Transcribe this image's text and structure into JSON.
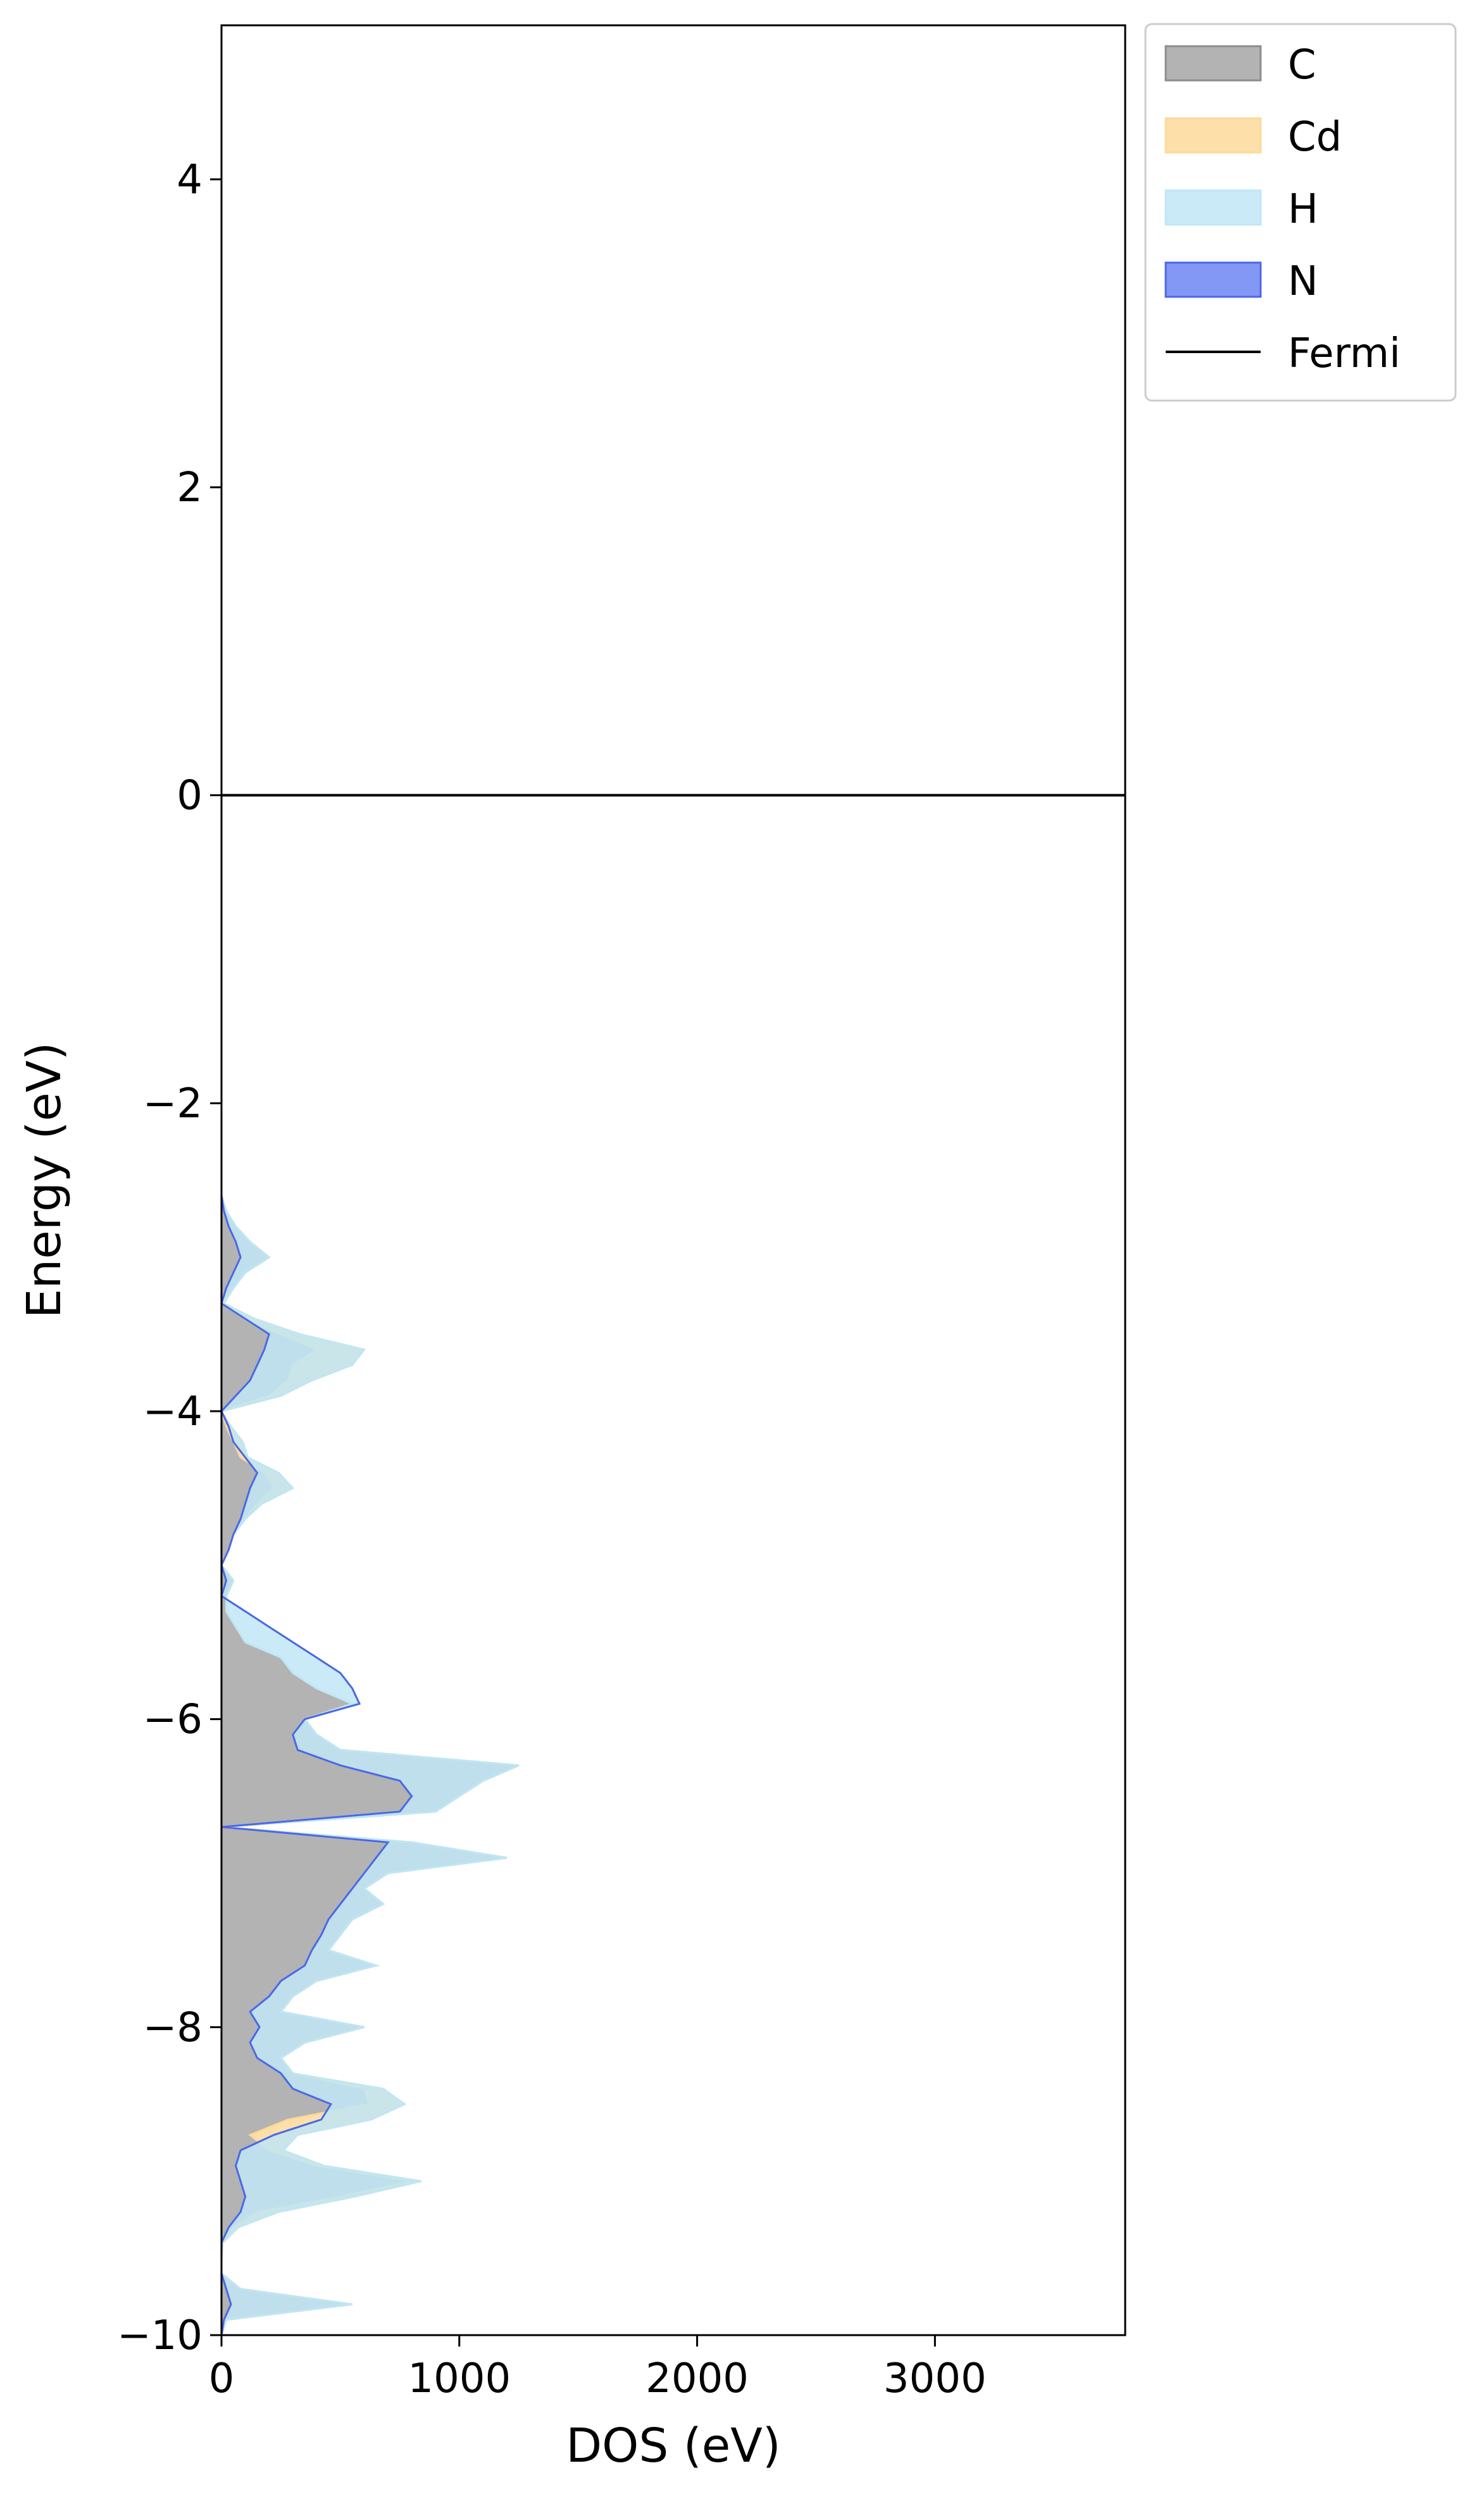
{
  "chart_data": {
    "type": "area",
    "orientation": "horizontal",
    "xlabel": "DOS (eV)",
    "ylabel": "Energy (eV)",
    "xlim": [
      0,
      3800
    ],
    "ylim": [
      -10,
      5
    ],
    "xticks": [
      0,
      1000,
      2000,
      3000
    ],
    "yticks": [
      -10,
      -8,
      -6,
      -4,
      -2,
      0,
      2,
      4
    ],
    "xtick_labels": [
      "0",
      "1000",
      "2000",
      "3000"
    ],
    "ytick_labels": [
      "−10",
      "−8",
      "−6",
      "−4",
      "−2",
      "0",
      "2",
      "4"
    ],
    "stacked": true,
    "fermi_level": 0,
    "legend_position": "outside-top-right",
    "energy": [
      -10.0,
      -9.9,
      -9.8,
      -9.7,
      -9.6,
      -9.5,
      -9.4,
      -9.3,
      -9.2,
      -9.1,
      -9.0,
      -8.9,
      -8.8,
      -8.7,
      -8.6,
      -8.5,
      -8.4,
      -8.3,
      -8.2,
      -8.1,
      -8.0,
      -7.9,
      -7.8,
      -7.7,
      -7.6,
      -7.5,
      -7.4,
      -7.3,
      -7.2,
      -7.1,
      -7.0,
      -6.9,
      -6.8,
      -6.7,
      -6.6,
      -6.5,
      -6.4,
      -6.3,
      -6.2,
      -6.1,
      -6.0,
      -5.9,
      -5.8,
      -5.7,
      -5.6,
      -5.5,
      -5.4,
      -5.3,
      -5.2,
      -5.1,
      -5.0,
      -4.9,
      -4.8,
      -4.7,
      -4.6,
      -4.5,
      -4.4,
      -4.3,
      -4.2,
      -4.1,
      -4.0,
      -3.9,
      -3.8,
      -3.7,
      -3.6,
      -3.5,
      -3.4,
      -3.3,
      -3.2,
      -3.1,
      -3.0,
      -2.9,
      -2.8,
      -2.7,
      -2.6,
      -2.5,
      -2.4,
      -2.3,
      -2.2,
      -2.1,
      -2.0,
      -1.9,
      -1.8,
      -1.7,
      -1.6,
      -1.5,
      -1.4,
      -1.3,
      -1.2,
      -1.1,
      -1.0,
      -0.9,
      -0.8,
      -0.7,
      -0.6,
      -0.5,
      -0.4,
      -0.3,
      -0.2,
      -0.1,
      0.0,
      0.1,
      0.2,
      0.3,
      0.4,
      0.5,
      0.6,
      0.7,
      0.8,
      0.9,
      1.0,
      1.1,
      1.2,
      1.3,
      1.4,
      1.5,
      1.6,
      1.7,
      1.8,
      1.9,
      2.0,
      2.1,
      2.2,
      2.3,
      2.4,
      2.5,
      2.6,
      2.7,
      2.8,
      2.9,
      3.0,
      3.1,
      3.2,
      3.3,
      3.4,
      3.5,
      3.6,
      3.7,
      3.8,
      3.9,
      4.0,
      4.1,
      4.2,
      4.3,
      4.4,
      4.5,
      4.6,
      4.7,
      4.8,
      4.9,
      5.0
    ],
    "series": [
      {
        "name": "C",
        "fill": "#a6a6a6",
        "edge": "#8c8c8c",
        "values": [
          0,
          20,
          550,
          80,
          0,
          0,
          5,
          50,
          150,
          500,
          800,
          400,
          200,
          120,
          280,
          620,
          600,
          300,
          250,
          350,
          600,
          250,
          300,
          400,
          650,
          450,
          500,
          550,
          680,
          600,
          700,
          1200,
          800,
          0,
          900,
          1000,
          1100,
          1250,
          500,
          400,
          350,
          550,
          400,
          300,
          250,
          100,
          60,
          20,
          20,
          50,
          0,
          30,
          50,
          100,
          150,
          220,
          180,
          80,
          50,
          20,
          0,
          200,
          280,
          300,
          400,
          250,
          100,
          0,
          50,
          100,
          200,
          120,
          60,
          20,
          0,
          0,
          0,
          0,
          0,
          0,
          0,
          0,
          0,
          0,
          0,
          0,
          0,
          0,
          0,
          0,
          0,
          0,
          0,
          0,
          0,
          0,
          0,
          0,
          0,
          0,
          0,
          0,
          0,
          0,
          0,
          0,
          0,
          0,
          0,
          0,
          0,
          0,
          0,
          0,
          0,
          0,
          0,
          0,
          0,
          0,
          0,
          0,
          0,
          0,
          0,
          0,
          0,
          0,
          0,
          0,
          0,
          0,
          0,
          0,
          0,
          0,
          0,
          0,
          0,
          0,
          0,
          0,
          0,
          0,
          0,
          0,
          0,
          0,
          0,
          0,
          0
        ]
      },
      {
        "name": "Cd",
        "fill": "#fdd99b",
        "edge": "#fdd99b",
        "values": [
          0,
          0,
          0,
          0,
          0,
          0,
          0,
          20,
          90,
          60,
          40,
          30,
          60,
          200,
          350,
          150,
          80,
          0,
          0,
          0,
          0,
          0,
          0,
          0,
          0,
          0,
          0,
          0,
          0,
          0,
          0,
          0,
          0,
          0,
          0,
          0,
          0,
          0,
          0,
          0,
          0,
          0,
          0,
          0,
          0,
          0,
          0,
          0,
          0,
          0,
          0,
          0,
          0,
          0,
          20,
          80,
          60,
          30,
          40,
          20,
          0,
          50,
          100,
          250,
          200,
          80,
          40,
          10,
          0,
          0,
          0,
          0,
          0,
          0,
          0,
          0,
          0,
          0,
          0,
          0,
          0,
          0,
          0,
          0,
          0,
          0,
          0,
          0,
          0,
          0,
          0,
          0,
          0,
          0,
          0,
          0,
          0,
          0,
          0,
          0,
          0,
          0,
          0,
          0,
          0,
          0,
          0,
          0,
          0,
          0,
          0,
          0,
          0,
          0,
          0,
          0,
          0,
          0,
          0,
          0,
          0,
          0,
          0,
          0,
          0,
          0,
          0,
          0,
          0,
          0,
          0,
          0,
          0,
          0,
          0,
          0,
          0,
          0,
          0,
          0,
          0,
          0,
          0,
          0,
          0,
          0,
          0,
          0,
          0,
          0,
          0
        ]
      },
      {
        "name": "H",
        "fill": "#bfe6f5",
        "edge": "#bfe6f5",
        "values": [
          0,
          0,
          0,
          0,
          0,
          0,
          0,
          0,
          0,
          0,
          0,
          0,
          0,
          0,
          0,
          0,
          0,
          0,
          0,
          0,
          0,
          0,
          0,
          0,
          0,
          0,
          0,
          0,
          0,
          0,
          0,
          0,
          0,
          0,
          0,
          0,
          0,
          0,
          0,
          0,
          0,
          0,
          0,
          0,
          0,
          0,
          0,
          0,
          0,
          0,
          0,
          0,
          0,
          0,
          0,
          0,
          0,
          0,
          0,
          0,
          0,
          0,
          0,
          0,
          0,
          0,
          0,
          0,
          0,
          0,
          0,
          0,
          0,
          0,
          0,
          0,
          0,
          0,
          0,
          0,
          0,
          0,
          0,
          0,
          0,
          0,
          0,
          0,
          0,
          0,
          0,
          0,
          0,
          0,
          0,
          0,
          0,
          0,
          0,
          0,
          0,
          0,
          0,
          0,
          0,
          0,
          0,
          0,
          0,
          0,
          0,
          0,
          0,
          0,
          0,
          0,
          0,
          0,
          0,
          0,
          0,
          0,
          0,
          0,
          0,
          0,
          0,
          0,
          0,
          0,
          0,
          0,
          0,
          0,
          0,
          0,
          0,
          0,
          0,
          0,
          0,
          0,
          0,
          0,
          0,
          0,
          0,
          0,
          0,
          0,
          0
        ],
        "cumulative_values": [
          0,
          10,
          40,
          20,
          0,
          0,
          0,
          30,
          80,
          100,
          80,
          60,
          80,
          220,
          420,
          460,
          300,
          250,
          150,
          120,
          160,
          120,
          200,
          250,
          350,
          380,
          420,
          450,
          500,
          550,
          600,
          650,
          700,
          0,
          750,
          800,
          750,
          500,
          320,
          300,
          350,
          580,
          550,
          500,
          400,
          300,
          200,
          100,
          0,
          20,
          0,
          30,
          50,
          80,
          100,
          120,
          150,
          100,
          50,
          30,
          0,
          60,
          120,
          150,
          180,
          200,
          100,
          0,
          20,
          50,
          80,
          60,
          30,
          10,
          0,
          0,
          0,
          0,
          0,
          0,
          0,
          0,
          0,
          0,
          0,
          0,
          0,
          0,
          0,
          0,
          0,
          0,
          0,
          0,
          0,
          0,
          0,
          0,
          0,
          0,
          0,
          0,
          0,
          0,
          0,
          0,
          0,
          0,
          0,
          0,
          0,
          0,
          0,
          0,
          0,
          0,
          0,
          0,
          0,
          0,
          0,
          0,
          0,
          0,
          0,
          0,
          0,
          0,
          0,
          0,
          0,
          0,
          0,
          0,
          0,
          0,
          0,
          0,
          0,
          0,
          0,
          0,
          0,
          0,
          0,
          0,
          0,
          0,
          0,
          0,
          0
        ]
      },
      {
        "name": "N",
        "fill": "#6d86f2",
        "edge": "#4b67e6",
        "values": [
          0,
          0,
          0,
          0,
          0,
          0,
          0,
          0,
          0,
          0,
          0,
          0,
          0,
          0,
          0,
          0,
          0,
          0,
          0,
          0,
          0,
          0,
          0,
          0,
          0,
          0,
          0,
          0,
          0,
          0,
          0,
          0,
          0,
          0,
          0,
          0,
          0,
          0,
          0,
          0,
          0,
          0,
          0,
          0,
          0,
          0,
          0,
          0,
          0,
          0,
          0,
          0,
          0,
          0,
          0,
          0,
          0,
          0,
          0,
          0,
          0,
          0,
          0,
          0,
          0,
          0,
          0,
          0,
          0,
          0,
          0,
          0,
          0,
          0,
          0,
          0,
          0,
          0,
          0,
          0,
          0,
          0,
          0,
          0,
          0,
          0,
          0,
          0,
          0,
          0,
          0,
          0,
          0,
          0,
          0,
          0,
          0,
          0,
          0,
          0,
          0,
          0,
          0,
          0,
          0,
          0,
          0,
          0,
          0,
          0,
          0,
          0,
          0,
          0,
          0,
          0,
          0,
          0,
          0,
          0,
          0,
          0,
          0,
          0,
          0,
          0,
          0,
          0,
          0,
          0,
          0,
          0,
          0,
          0,
          0,
          0,
          0,
          0,
          0,
          0,
          0,
          0,
          0,
          0,
          0,
          0,
          0,
          0,
          0,
          0,
          0
        ]
      },
      {
        "name": "Fermi",
        "type": "line",
        "color": "#000000"
      }
    ]
  }
}
